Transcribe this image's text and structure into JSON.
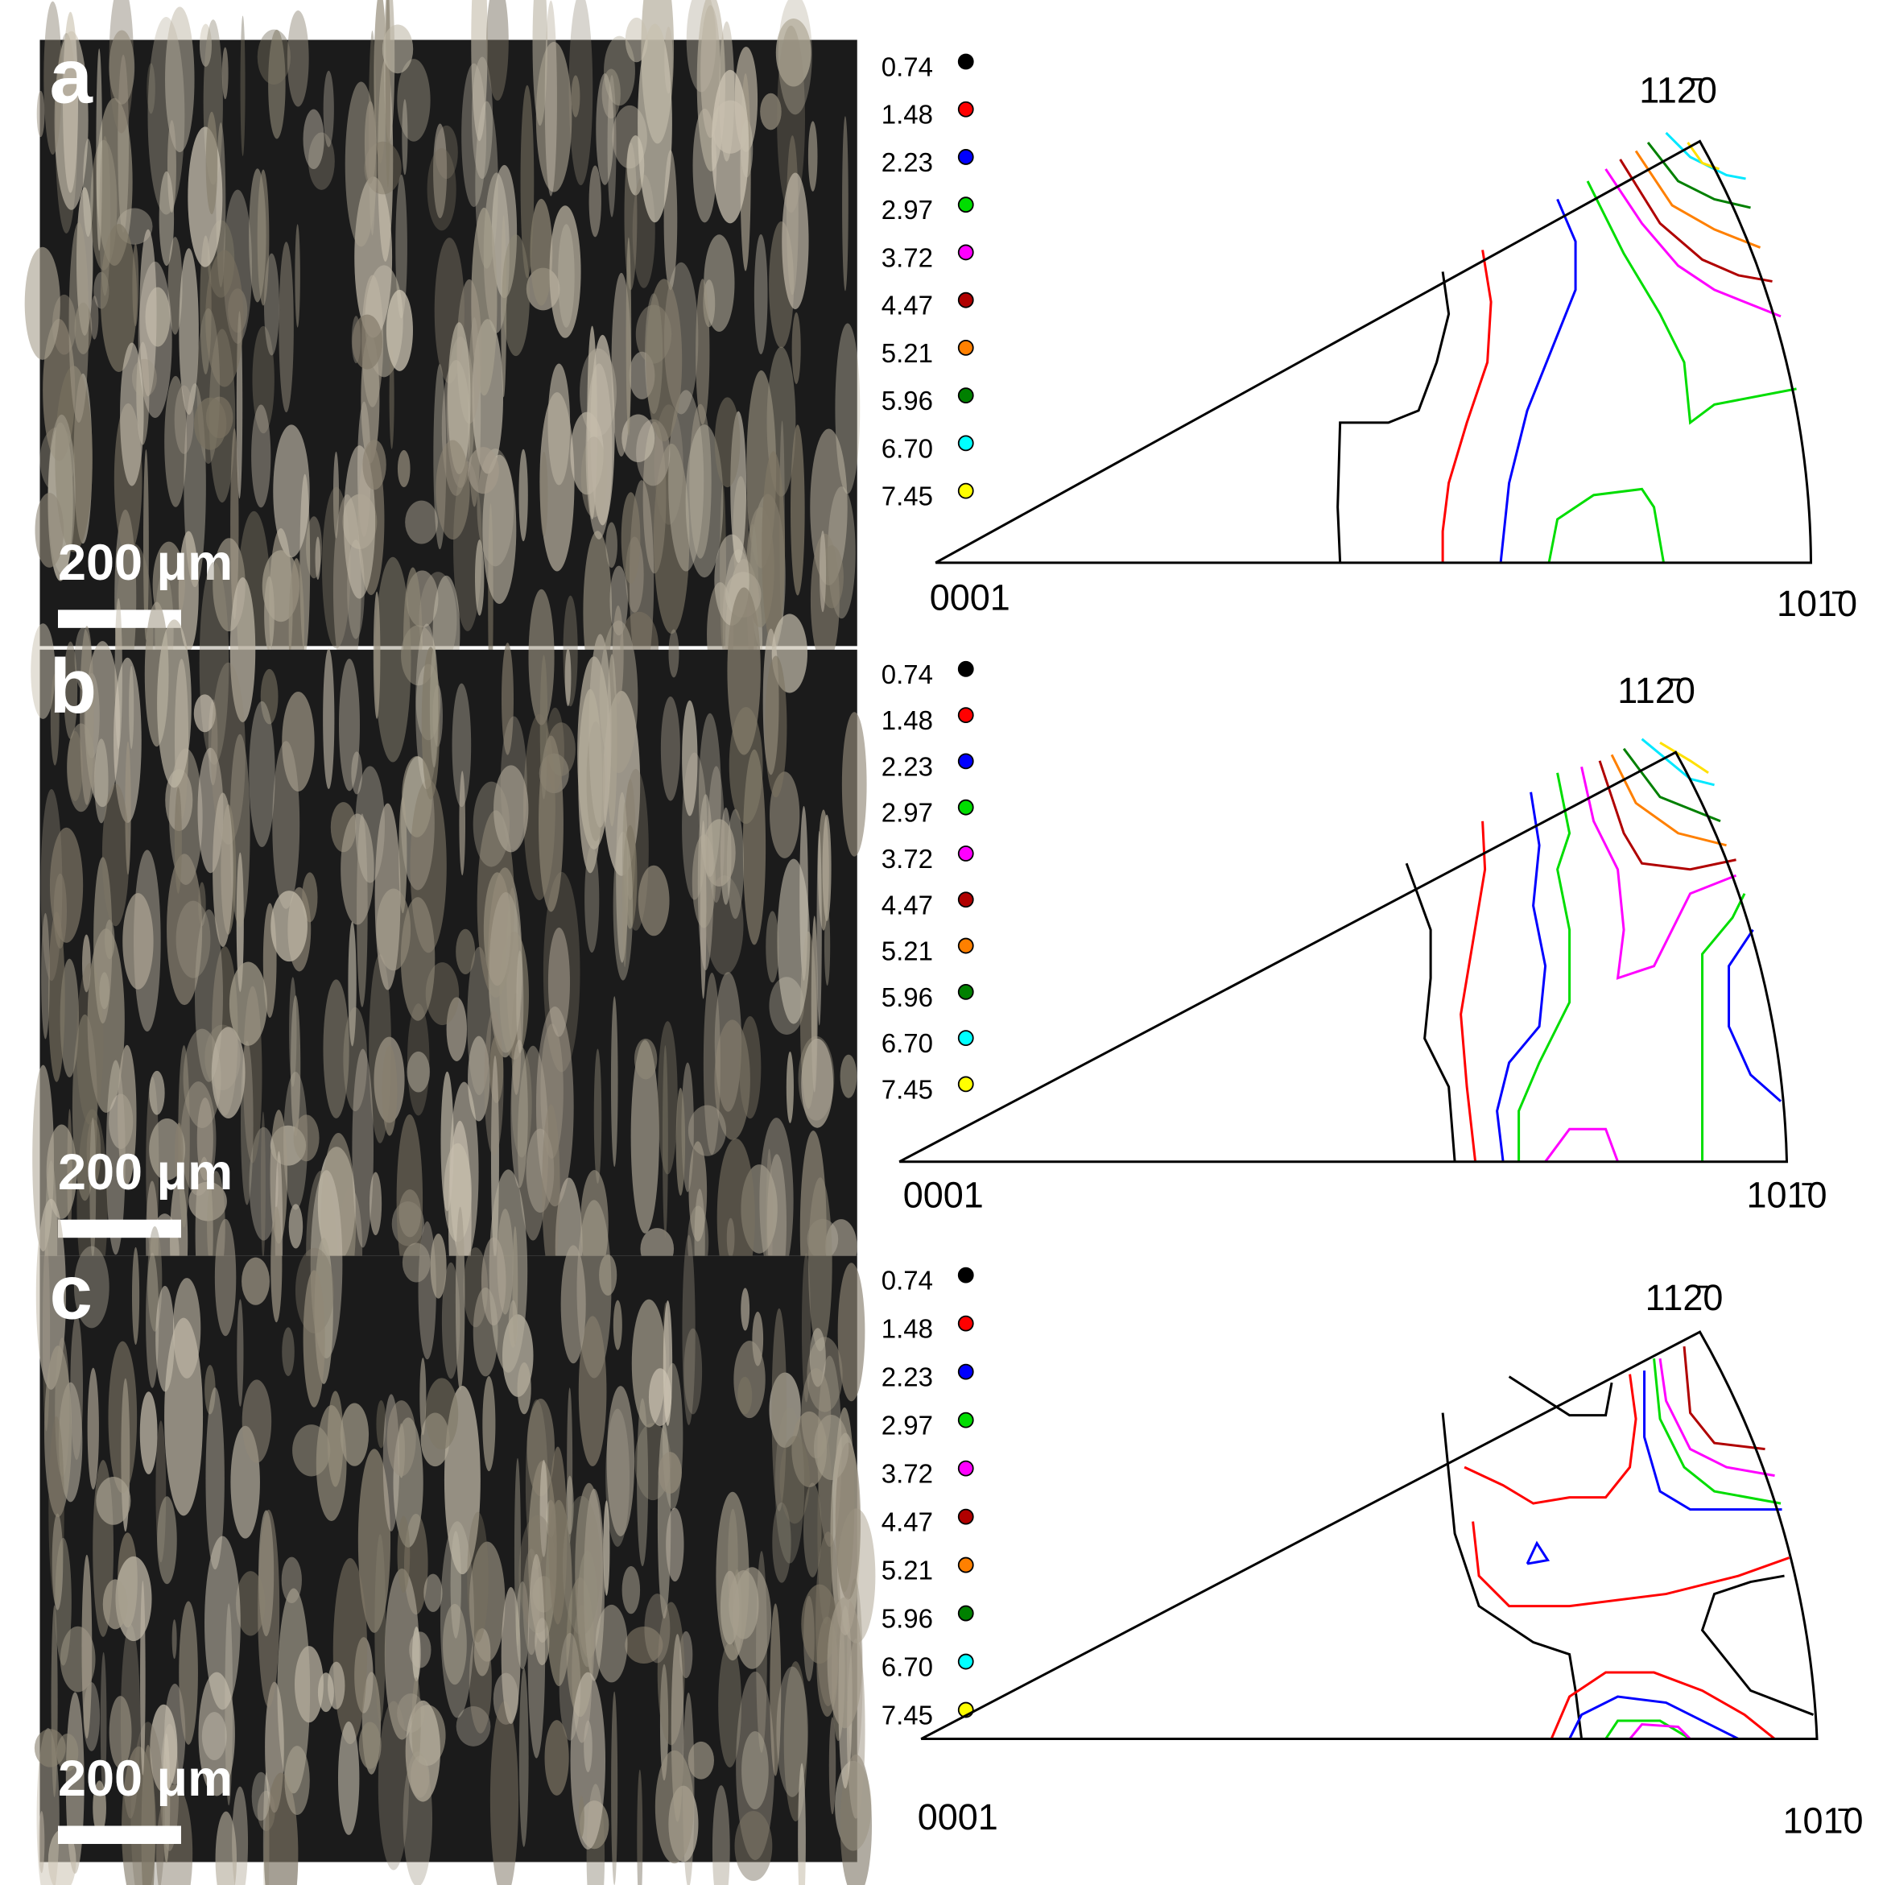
{
  "legend_colors": [
    "#000000",
    "#ff0000",
    "#0000ff",
    "#00dd00",
    "#ff00ff",
    "#b00000",
    "#ff8000",
    "#008000",
    "#00ffff",
    "#ffff00"
  ],
  "panels": [
    {
      "label": "a",
      "scale_bar": "200 μm",
      "legend": [
        "0.74",
        "1.48",
        "2.23",
        "2.97",
        "3.72",
        "4.47",
        "5.21",
        "5.96",
        "6.70",
        "7.45"
      ],
      "corner_top": "112̄0",
      "corner_left": "0001",
      "corner_right": "101̄0"
    },
    {
      "label": "b",
      "scale_bar": "200 μm",
      "legend": [
        "0.74",
        "1.48",
        "2.23",
        "2.97",
        "3.72",
        "4.47",
        "5.21",
        "5.96",
        "6.70",
        "7.45"
      ],
      "corner_top": "112̄0",
      "corner_left": "0001",
      "corner_right": "101̄0"
    },
    {
      "label": "c",
      "scale_bar": "200 μm",
      "legend": [
        "0.74",
        "1.48",
        "2.23",
        "2.97",
        "3.72",
        "4.47",
        "5.21",
        "5.96",
        "6.70",
        "7.45"
      ],
      "corner_top": "112̄0",
      "corner_left": "0001",
      "corner_right": "101̄0"
    }
  ]
}
